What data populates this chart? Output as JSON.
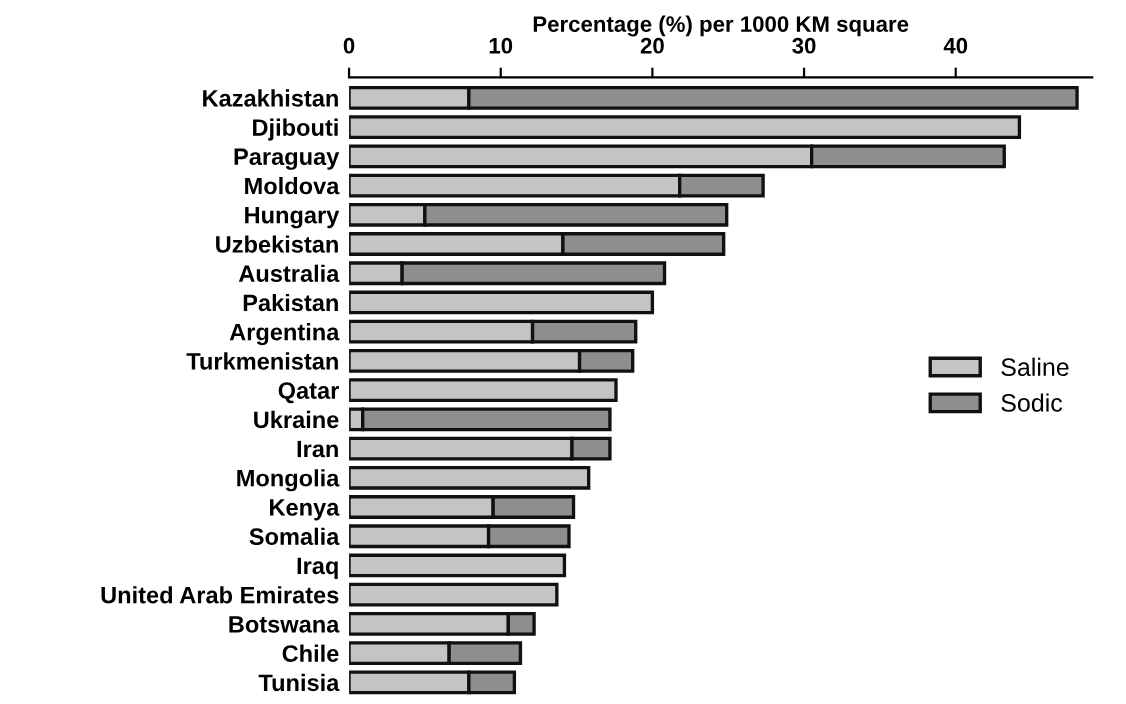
{
  "chart_data": {
    "type": "bar",
    "orientation": "horizontal",
    "stacked": true,
    "xlabel": "Percentage (%) per 1000 KM square",
    "categories": [
      "Kazakhistan",
      "Djibouti",
      "Paraguay",
      "Moldova",
      "Hungary",
      "Uzbekistan",
      "Australia",
      "Pakistan",
      "Argentina",
      "Turkmenistan",
      "Qatar",
      "Ukraine",
      "Iran",
      "Mongolia",
      "Kenya",
      "Somalia",
      "Iraq",
      "United Arab Emirates",
      "Botswana",
      "Chile",
      "Tunisia"
    ],
    "series": [
      {
        "name": "Saline",
        "color": "#c4c4c4",
        "values": [
          7.9,
          44.2,
          30.5,
          21.8,
          5.0,
          14.1,
          3.5,
          20.0,
          12.1,
          15.2,
          17.6,
          0.9,
          14.7,
          15.8,
          9.5,
          9.2,
          14.2,
          13.7,
          10.5,
          6.6,
          7.9
        ]
      },
      {
        "name": "Sodic",
        "color": "#8e8e8e",
        "values": [
          40.1,
          null,
          12.7,
          5.5,
          19.9,
          10.6,
          17.3,
          null,
          6.8,
          3.5,
          null,
          16.3,
          2.5,
          null,
          5.3,
          5.3,
          null,
          null,
          1.7,
          4.7,
          3.0
        ]
      }
    ],
    "xlim": [
      0,
      49
    ],
    "xticks": [
      0,
      10,
      20,
      30,
      40
    ],
    "legend": "right",
    "grid": false
  }
}
